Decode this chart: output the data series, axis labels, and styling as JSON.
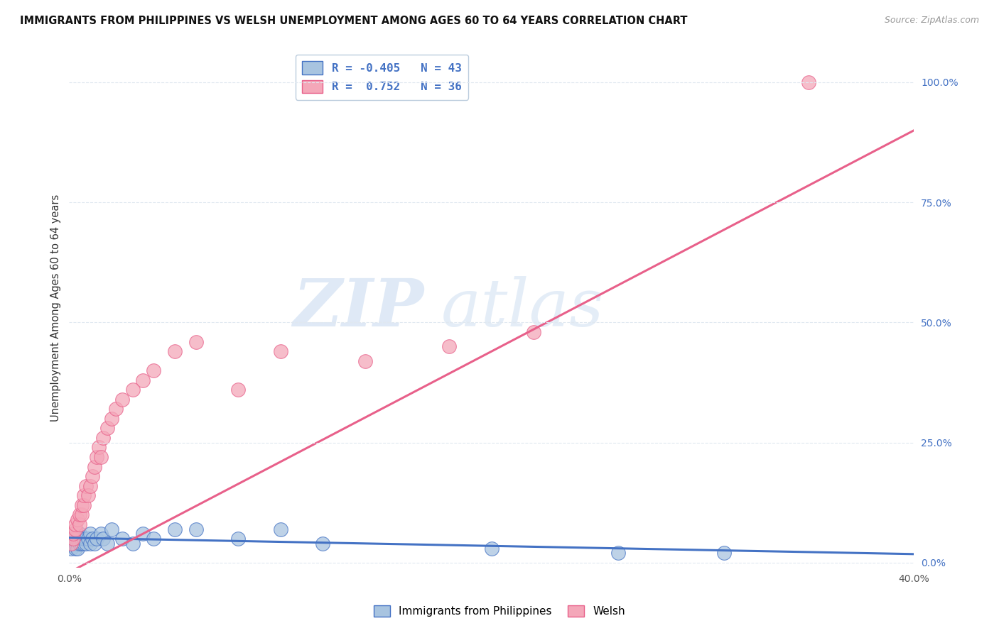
{
  "title": "IMMIGRANTS FROM PHILIPPINES VS WELSH UNEMPLOYMENT AMONG AGES 60 TO 64 YEARS CORRELATION CHART",
  "source": "Source: ZipAtlas.com",
  "ylabel": "Unemployment Among Ages 60 to 64 years",
  "r_philippines": -0.405,
  "n_philippines": 43,
  "r_welsh": 0.752,
  "n_welsh": 36,
  "color_philippines": "#a8c4e0",
  "color_welsh": "#f4a7b9",
  "color_line_philippines": "#4472c4",
  "color_line_welsh": "#e8608a",
  "right_yticks": [
    0.0,
    0.25,
    0.5,
    0.75,
    1.0
  ],
  "right_yticklabels": [
    "0.0%",
    "25.0%",
    "50.0%",
    "75.0%",
    "100.0%"
  ],
  "background_color": "#ffffff",
  "grid_color": "#e0e8f0",
  "philippines_x": [
    0.001,
    0.001,
    0.001,
    0.002,
    0.002,
    0.002,
    0.003,
    0.003,
    0.003,
    0.004,
    0.004,
    0.004,
    0.005,
    0.005,
    0.005,
    0.006,
    0.006,
    0.007,
    0.007,
    0.008,
    0.008,
    0.009,
    0.01,
    0.01,
    0.011,
    0.012,
    0.013,
    0.015,
    0.016,
    0.018,
    0.02,
    0.025,
    0.03,
    0.035,
    0.04,
    0.05,
    0.06,
    0.08,
    0.1,
    0.12,
    0.2,
    0.26,
    0.31
  ],
  "philippines_y": [
    0.04,
    0.05,
    0.03,
    0.05,
    0.04,
    0.06,
    0.04,
    0.05,
    0.03,
    0.05,
    0.04,
    0.03,
    0.05,
    0.04,
    0.06,
    0.04,
    0.05,
    0.04,
    0.05,
    0.05,
    0.04,
    0.05,
    0.06,
    0.04,
    0.05,
    0.04,
    0.05,
    0.06,
    0.05,
    0.04,
    0.07,
    0.05,
    0.04,
    0.06,
    0.05,
    0.07,
    0.07,
    0.05,
    0.07,
    0.04,
    0.03,
    0.02,
    0.02
  ],
  "welsh_x": [
    0.001,
    0.002,
    0.002,
    0.003,
    0.003,
    0.004,
    0.005,
    0.005,
    0.006,
    0.006,
    0.007,
    0.007,
    0.008,
    0.009,
    0.01,
    0.011,
    0.012,
    0.013,
    0.014,
    0.015,
    0.016,
    0.018,
    0.02,
    0.022,
    0.025,
    0.03,
    0.035,
    0.04,
    0.05,
    0.06,
    0.08,
    0.1,
    0.14,
    0.18,
    0.22,
    0.35
  ],
  "welsh_y": [
    0.04,
    0.05,
    0.06,
    0.07,
    0.08,
    0.09,
    0.08,
    0.1,
    0.1,
    0.12,
    0.12,
    0.14,
    0.16,
    0.14,
    0.16,
    0.18,
    0.2,
    0.22,
    0.24,
    0.22,
    0.26,
    0.28,
    0.3,
    0.32,
    0.34,
    0.36,
    0.38,
    0.4,
    0.44,
    0.46,
    0.36,
    0.44,
    0.42,
    0.45,
    0.48,
    1.0
  ],
  "xlim": [
    0.0,
    0.4
  ],
  "ylim": [
    -0.01,
    1.07
  ],
  "trend_philippines_y0": 0.052,
  "trend_philippines_y1": 0.018,
  "trend_welsh_y0": -0.02,
  "trend_welsh_y1": 0.9
}
